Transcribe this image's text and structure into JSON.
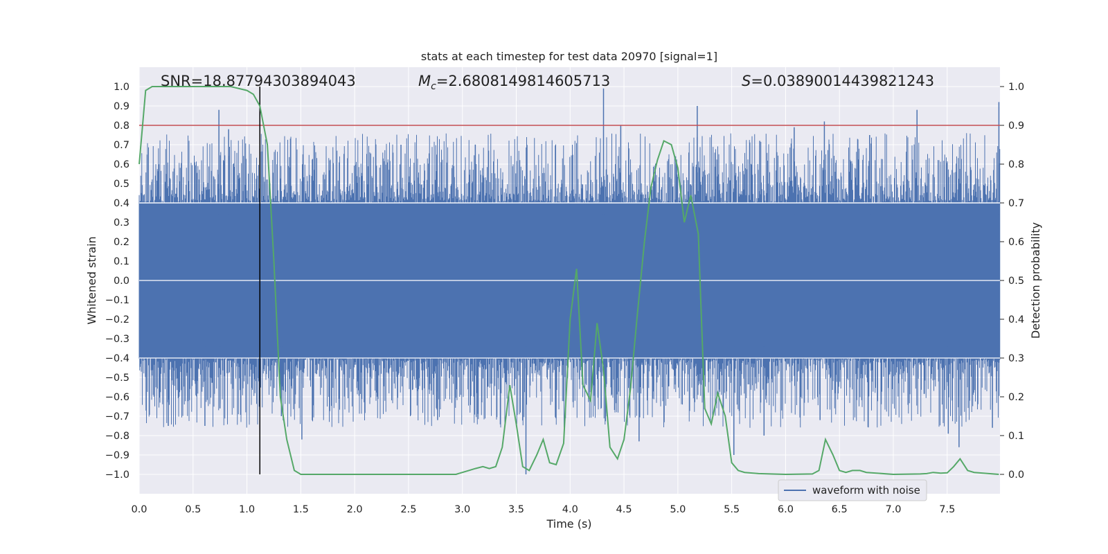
{
  "chart_data": {
    "type": "line",
    "title": "stats at each timestep for test data 20970 [signal=1]",
    "xlabel": "Time (s)",
    "ylabel": "Whitened strain",
    "y2label": "Detection probability",
    "xlim": [
      0.0,
      7.99
    ],
    "ylim": [
      -1.1,
      1.1
    ],
    "y2lim": [
      -0.05,
      1.05
    ],
    "x_ticks": [
      "0.0",
      "0.5",
      "1.0",
      "1.5",
      "2.0",
      "2.5",
      "3.0",
      "3.5",
      "4.0",
      "4.5",
      "5.0",
      "5.5",
      "6.0",
      "6.5",
      "7.0",
      "7.5"
    ],
    "y_ticks": [
      "1.0",
      "0.9",
      "0.8",
      "0.7",
      "0.6",
      "0.5",
      "0.4",
      "0.3",
      "0.2",
      "0.1",
      "0.0",
      "−0.1",
      "−0.2",
      "−0.3",
      "−0.4",
      "−0.5",
      "−0.6",
      "−0.7",
      "−0.8",
      "−0.9",
      "−1.0"
    ],
    "y2_ticks": [
      "1.0",
      "0.9",
      "0.8",
      "0.7",
      "0.6",
      "0.5",
      "0.4",
      "0.3",
      "0.2",
      "0.1",
      "0.0"
    ],
    "annotations": {
      "snr": "SNR=18.87794303894043",
      "mc_symbol": "M",
      "mc_sub": "c",
      "mc_value": "=2.6808149814605713",
      "s_symbol": "S",
      "s_value": "=0.03890014439821243"
    },
    "threshold_probability": 0.9,
    "event_marker_time": 1.12,
    "legend": {
      "label": "waveform with noise",
      "position": "lower-right"
    },
    "colors": {
      "waveform": "#4c72b0",
      "probability": "#55a868",
      "threshold": "#c44e52",
      "marker": "#000000",
      "background": "#eaeaf2",
      "grid": "#ffffff"
    },
    "series": [
      {
        "name": "waveform with noise",
        "type": "noise_band",
        "envelope": 0.4,
        "peaks": [
          {
            "x": 0.74,
            "y": 0.88
          },
          {
            "x": 0.75,
            "y": -0.66
          },
          {
            "x": 0.27,
            "y": -0.75
          },
          {
            "x": 0.61,
            "y": -0.75
          },
          {
            "x": 0.83,
            "y": 0.78
          },
          {
            "x": 1.51,
            "y": -0.82
          },
          {
            "x": 2.43,
            "y": 0.7
          },
          {
            "x": 3.12,
            "y": 0.7
          },
          {
            "x": 3.59,
            "y": -1.0
          },
          {
            "x": 4.31,
            "y": 0.99
          },
          {
            "x": 4.33,
            "y": -0.7
          },
          {
            "x": 4.47,
            "y": 0.8
          },
          {
            "x": 4.64,
            "y": -0.83
          },
          {
            "x": 5.18,
            "y": 0.9
          },
          {
            "x": 5.52,
            "y": -0.9
          },
          {
            "x": 5.8,
            "y": -0.8
          },
          {
            "x": 6.08,
            "y": 0.79
          },
          {
            "x": 6.36,
            "y": 0.82
          },
          {
            "x": 7.22,
            "y": 0.88
          },
          {
            "x": 7.51,
            "y": -0.79
          },
          {
            "x": 7.61,
            "y": -0.86
          },
          {
            "x": 7.92,
            "y": -0.76
          },
          {
            "x": 7.98,
            "y": 0.92
          },
          {
            "x": 6.78,
            "y": 0.75
          },
          {
            "x": 5.76,
            "y": 0.72
          },
          {
            "x": 6.32,
            "y": -0.72
          },
          {
            "x": 2.77,
            "y": -0.72
          },
          {
            "x": 1.32,
            "y": -0.7
          }
        ]
      },
      {
        "name": "detection probability",
        "axis": "right",
        "x": [
          0.0,
          0.06,
          0.12,
          0.25,
          0.5,
          0.7,
          0.85,
          1.0,
          1.06,
          1.12,
          1.19,
          1.25,
          1.31,
          1.37,
          1.44,
          1.5,
          1.75,
          2.0,
          2.5,
          2.94,
          3.0,
          3.06,
          3.12,
          3.19,
          3.25,
          3.31,
          3.37,
          3.44,
          3.5,
          3.56,
          3.62,
          3.69,
          3.75,
          3.81,
          3.87,
          3.94,
          4.0,
          4.06,
          4.12,
          4.19,
          4.25,
          4.31,
          4.37,
          4.44,
          4.5,
          4.56,
          4.62,
          4.69,
          4.75,
          4.81,
          4.87,
          4.94,
          5.0,
          5.06,
          5.12,
          5.19,
          5.25,
          5.31,
          5.37,
          5.44,
          5.5,
          5.56,
          5.62,
          5.75,
          6.0,
          6.25,
          6.31,
          6.37,
          6.44,
          6.5,
          6.56,
          6.62,
          6.69,
          6.75,
          7.0,
          7.25,
          7.31,
          7.37,
          7.44,
          7.5,
          7.56,
          7.62,
          7.69,
          7.75,
          7.98
        ],
        "y": [
          0.8,
          0.99,
          1.0,
          1.0,
          1.0,
          1.0,
          1.0,
          0.99,
          0.98,
          0.95,
          0.85,
          0.55,
          0.2,
          0.09,
          0.01,
          0.0,
          0.0,
          0.0,
          0.0,
          0.0,
          0.005,
          0.01,
          0.015,
          0.02,
          0.015,
          0.02,
          0.07,
          0.23,
          0.13,
          0.02,
          0.01,
          0.05,
          0.09,
          0.03,
          0.025,
          0.08,
          0.4,
          0.53,
          0.23,
          0.19,
          0.39,
          0.27,
          0.07,
          0.04,
          0.09,
          0.22,
          0.4,
          0.6,
          0.74,
          0.81,
          0.86,
          0.85,
          0.79,
          0.65,
          0.72,
          0.62,
          0.17,
          0.13,
          0.21,
          0.15,
          0.03,
          0.01,
          0.005,
          0.002,
          0.0,
          0.001,
          0.01,
          0.09,
          0.05,
          0.01,
          0.005,
          0.01,
          0.01,
          0.005,
          0.0,
          0.001,
          0.002,
          0.005,
          0.003,
          0.004,
          0.02,
          0.04,
          0.01,
          0.005,
          0.0
        ]
      }
    ]
  }
}
